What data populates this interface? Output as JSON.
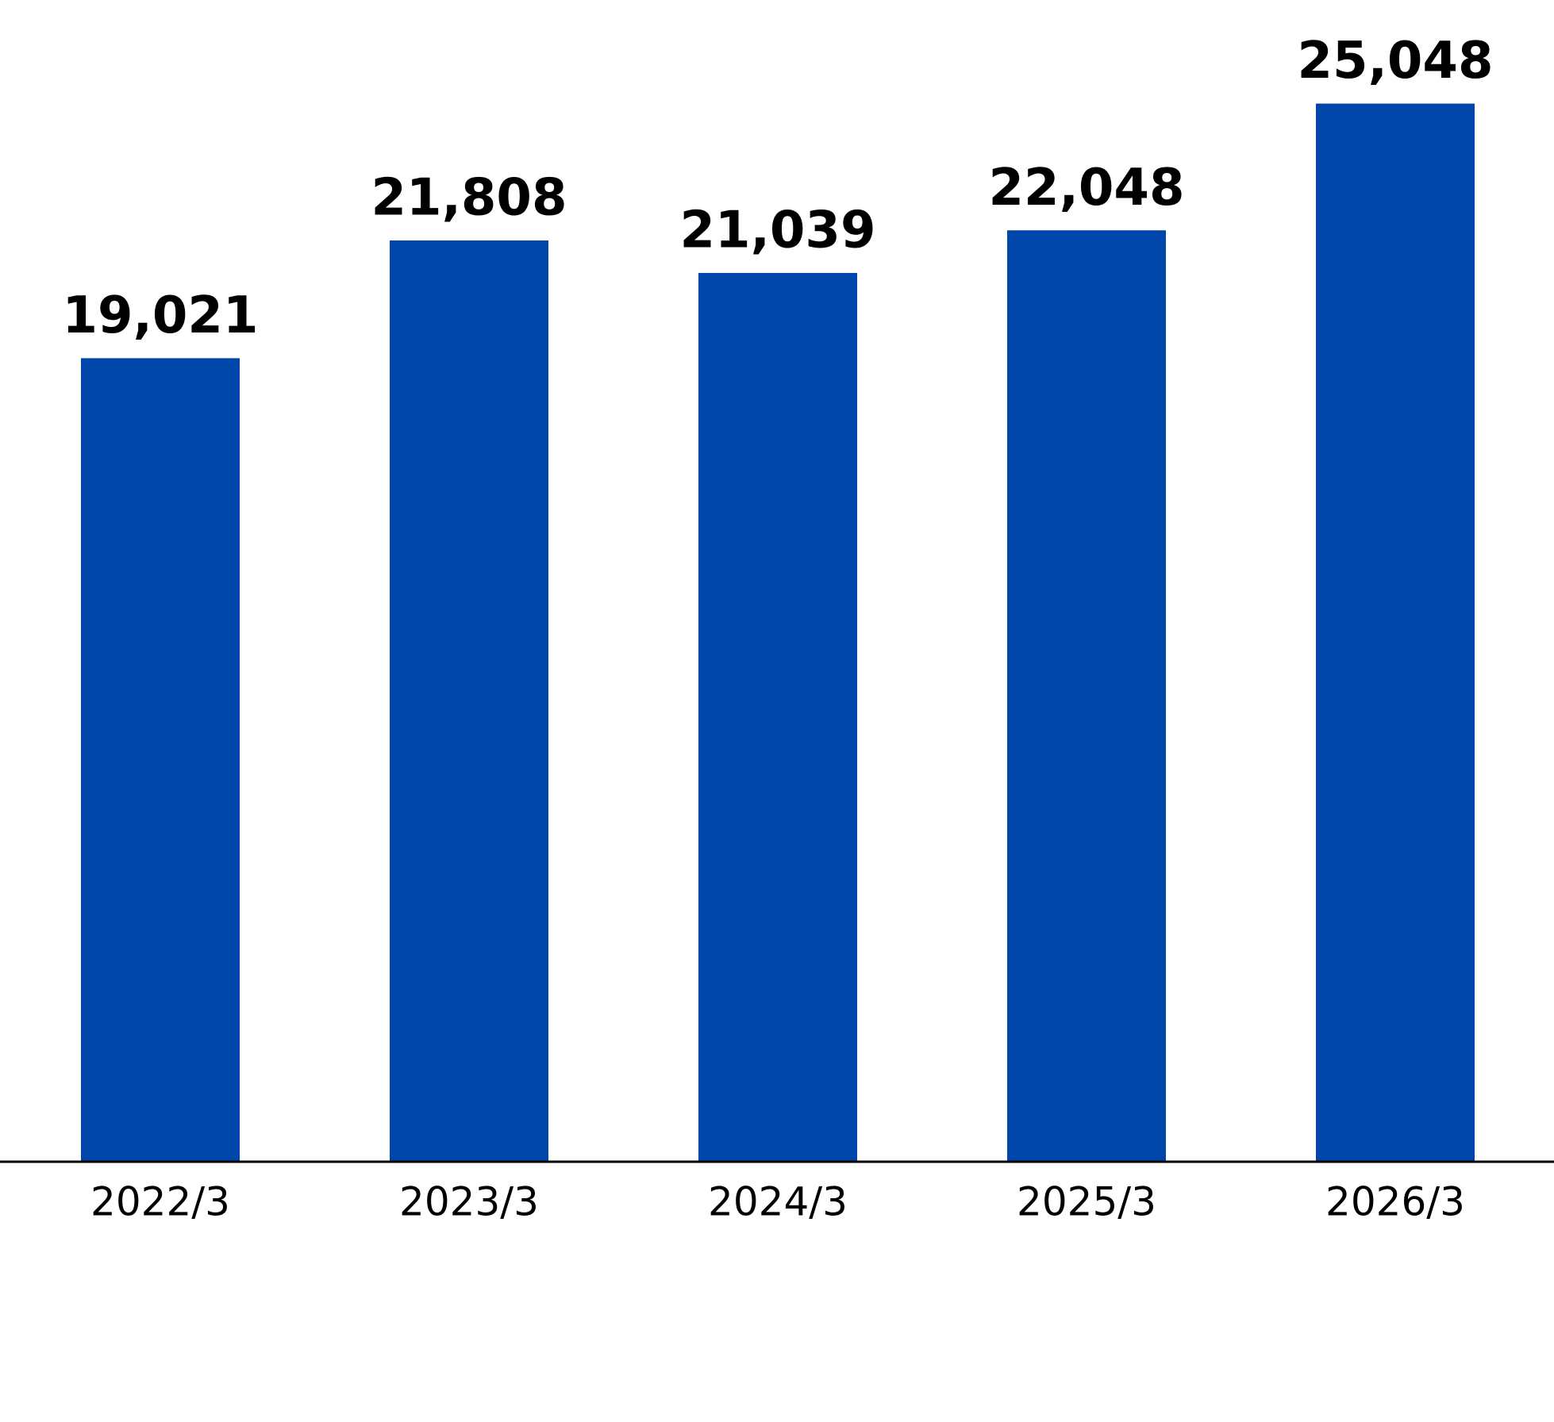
{
  "chart_data": {
    "type": "bar",
    "categories": [
      "2022/3",
      "2023/3",
      "2024/3",
      "2025/3",
      "2026/3"
    ],
    "values": [
      19021,
      21808,
      21039,
      22048,
      25048
    ],
    "value_labels": [
      "19,021",
      "21,808",
      "21,039",
      "22,048",
      "25,048"
    ],
    "color": "#0046aa",
    "ylim": [
      0,
      27500
    ]
  }
}
